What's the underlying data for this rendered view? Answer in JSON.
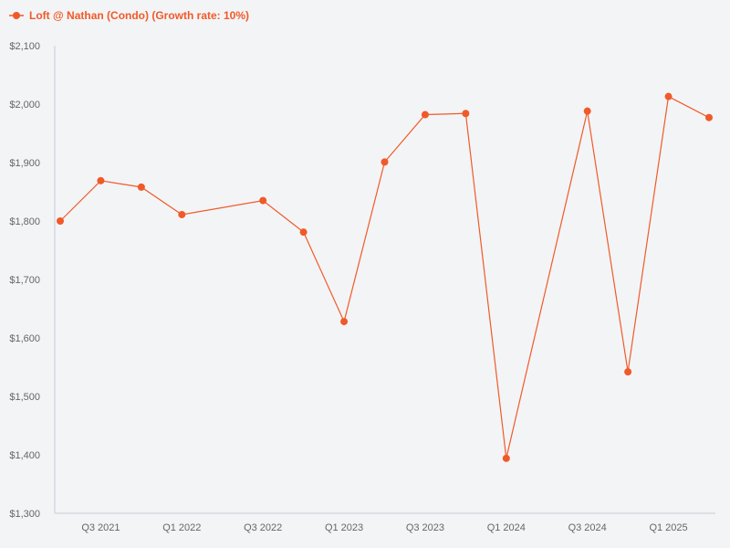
{
  "legend": {
    "label": "Loft @ Nathan (Condo) (Growth rate: 10%)",
    "marker_icon": "line-dot-marker-icon"
  },
  "colors": {
    "series": "#f05a28",
    "axis": "#c9ccd6",
    "background": "#f3f4f6",
    "tick_text": "#666666"
  },
  "chart_data": {
    "type": "line",
    "title": "",
    "xlabel": "",
    "ylabel": "",
    "ylim": [
      1300,
      2100
    ],
    "y_ticks": [
      "$1,300",
      "$1,400",
      "$1,500",
      "$1,600",
      "$1,700",
      "$1,800",
      "$1,900",
      "$2,000",
      "$2,100"
    ],
    "y_tick_values": [
      1300,
      1400,
      1500,
      1600,
      1700,
      1800,
      1900,
      2000,
      2100
    ],
    "x": [
      "Q2 2021",
      "Q3 2021",
      "Q4 2021",
      "Q1 2022",
      "Q2 2022",
      "Q3 2022",
      "Q4 2022",
      "Q1 2023",
      "Q2 2023",
      "Q3 2023",
      "Q4 2023",
      "Q1 2024",
      "Q2 2024",
      "Q3 2024",
      "Q4 2024",
      "Q1 2025",
      "Q2 2025"
    ],
    "x_tick_labels": [
      "",
      "Q3 2021",
      "",
      "Q1 2022",
      "",
      "Q3 2022",
      "",
      "Q1 2023",
      "",
      "Q3 2023",
      "",
      "Q1 2024",
      "",
      "Q3 2024",
      "",
      "Q1 2025",
      ""
    ],
    "grid": false,
    "legend_position": "top-left",
    "series": [
      {
        "name": "Loft @ Nathan (Condo) (Growth rate: 10%)",
        "values": [
          {
            "x": "Q2 2021",
            "y": 1800
          },
          {
            "x": "Q3 2021",
            "y": 1869
          },
          {
            "x": "Q4 2021",
            "y": 1858
          },
          {
            "x": "Q1 2022",
            "y": 1811
          },
          {
            "x": "Q2 2022",
            "y": null
          },
          {
            "x": "Q3 2022",
            "y": 1835
          },
          {
            "x": "Q4 2022",
            "y": 1781
          },
          {
            "x": "Q1 2023",
            "y": 1628
          },
          {
            "x": "Q2 2023",
            "y": 1901
          },
          {
            "x": "Q3 2023",
            "y": 1982
          },
          {
            "x": "Q4 2023",
            "y": 1984
          },
          {
            "x": "Q1 2024",
            "y": 1394
          },
          {
            "x": "Q2 2024",
            "y": null
          },
          {
            "x": "Q3 2024",
            "y": 1988
          },
          {
            "x": "Q4 2024",
            "y": 1542
          },
          {
            "x": "Q1 2025",
            "y": 2013
          },
          {
            "x": "Q2 2025",
            "y": 1977
          }
        ]
      }
    ]
  }
}
